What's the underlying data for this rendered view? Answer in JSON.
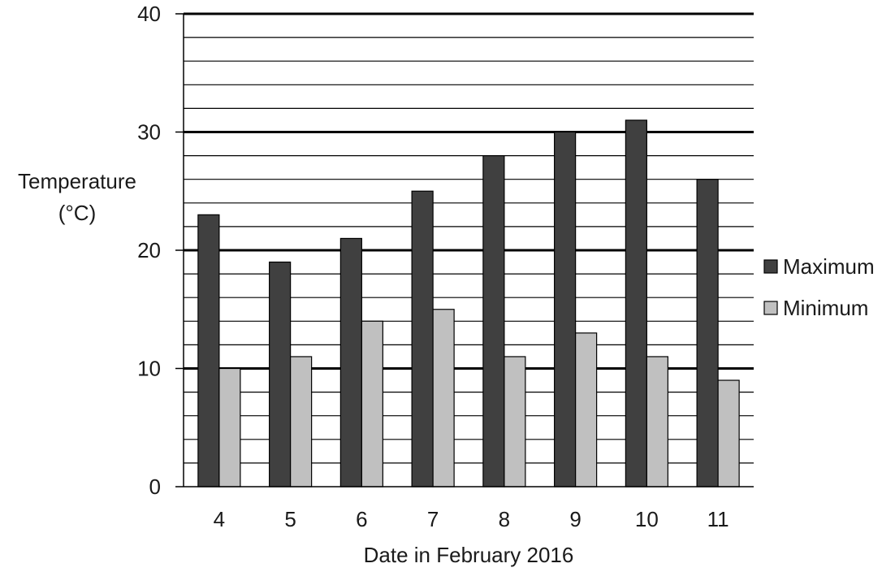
{
  "chart_data": {
    "type": "bar",
    "title": "",
    "xlabel": "Date in February 2016",
    "ylabel_lines": [
      "Temperature",
      "(°C)"
    ],
    "categories": [
      "4",
      "5",
      "6",
      "7",
      "8",
      "9",
      "10",
      "11"
    ],
    "series": [
      {
        "name": "Maximum",
        "values": [
          23,
          19,
          21,
          25,
          28,
          30,
          31,
          26
        ],
        "color": "#404040"
      },
      {
        "name": "Minimum",
        "values": [
          10,
          11,
          14,
          15,
          11,
          13,
          11,
          9
        ],
        "color": "#c0c0c0"
      }
    ],
    "ylim": [
      0,
      40
    ],
    "y_major_ticks": [
      0,
      10,
      20,
      30,
      40
    ],
    "y_minor_step": 2,
    "grid": true,
    "legend_position": "right"
  }
}
